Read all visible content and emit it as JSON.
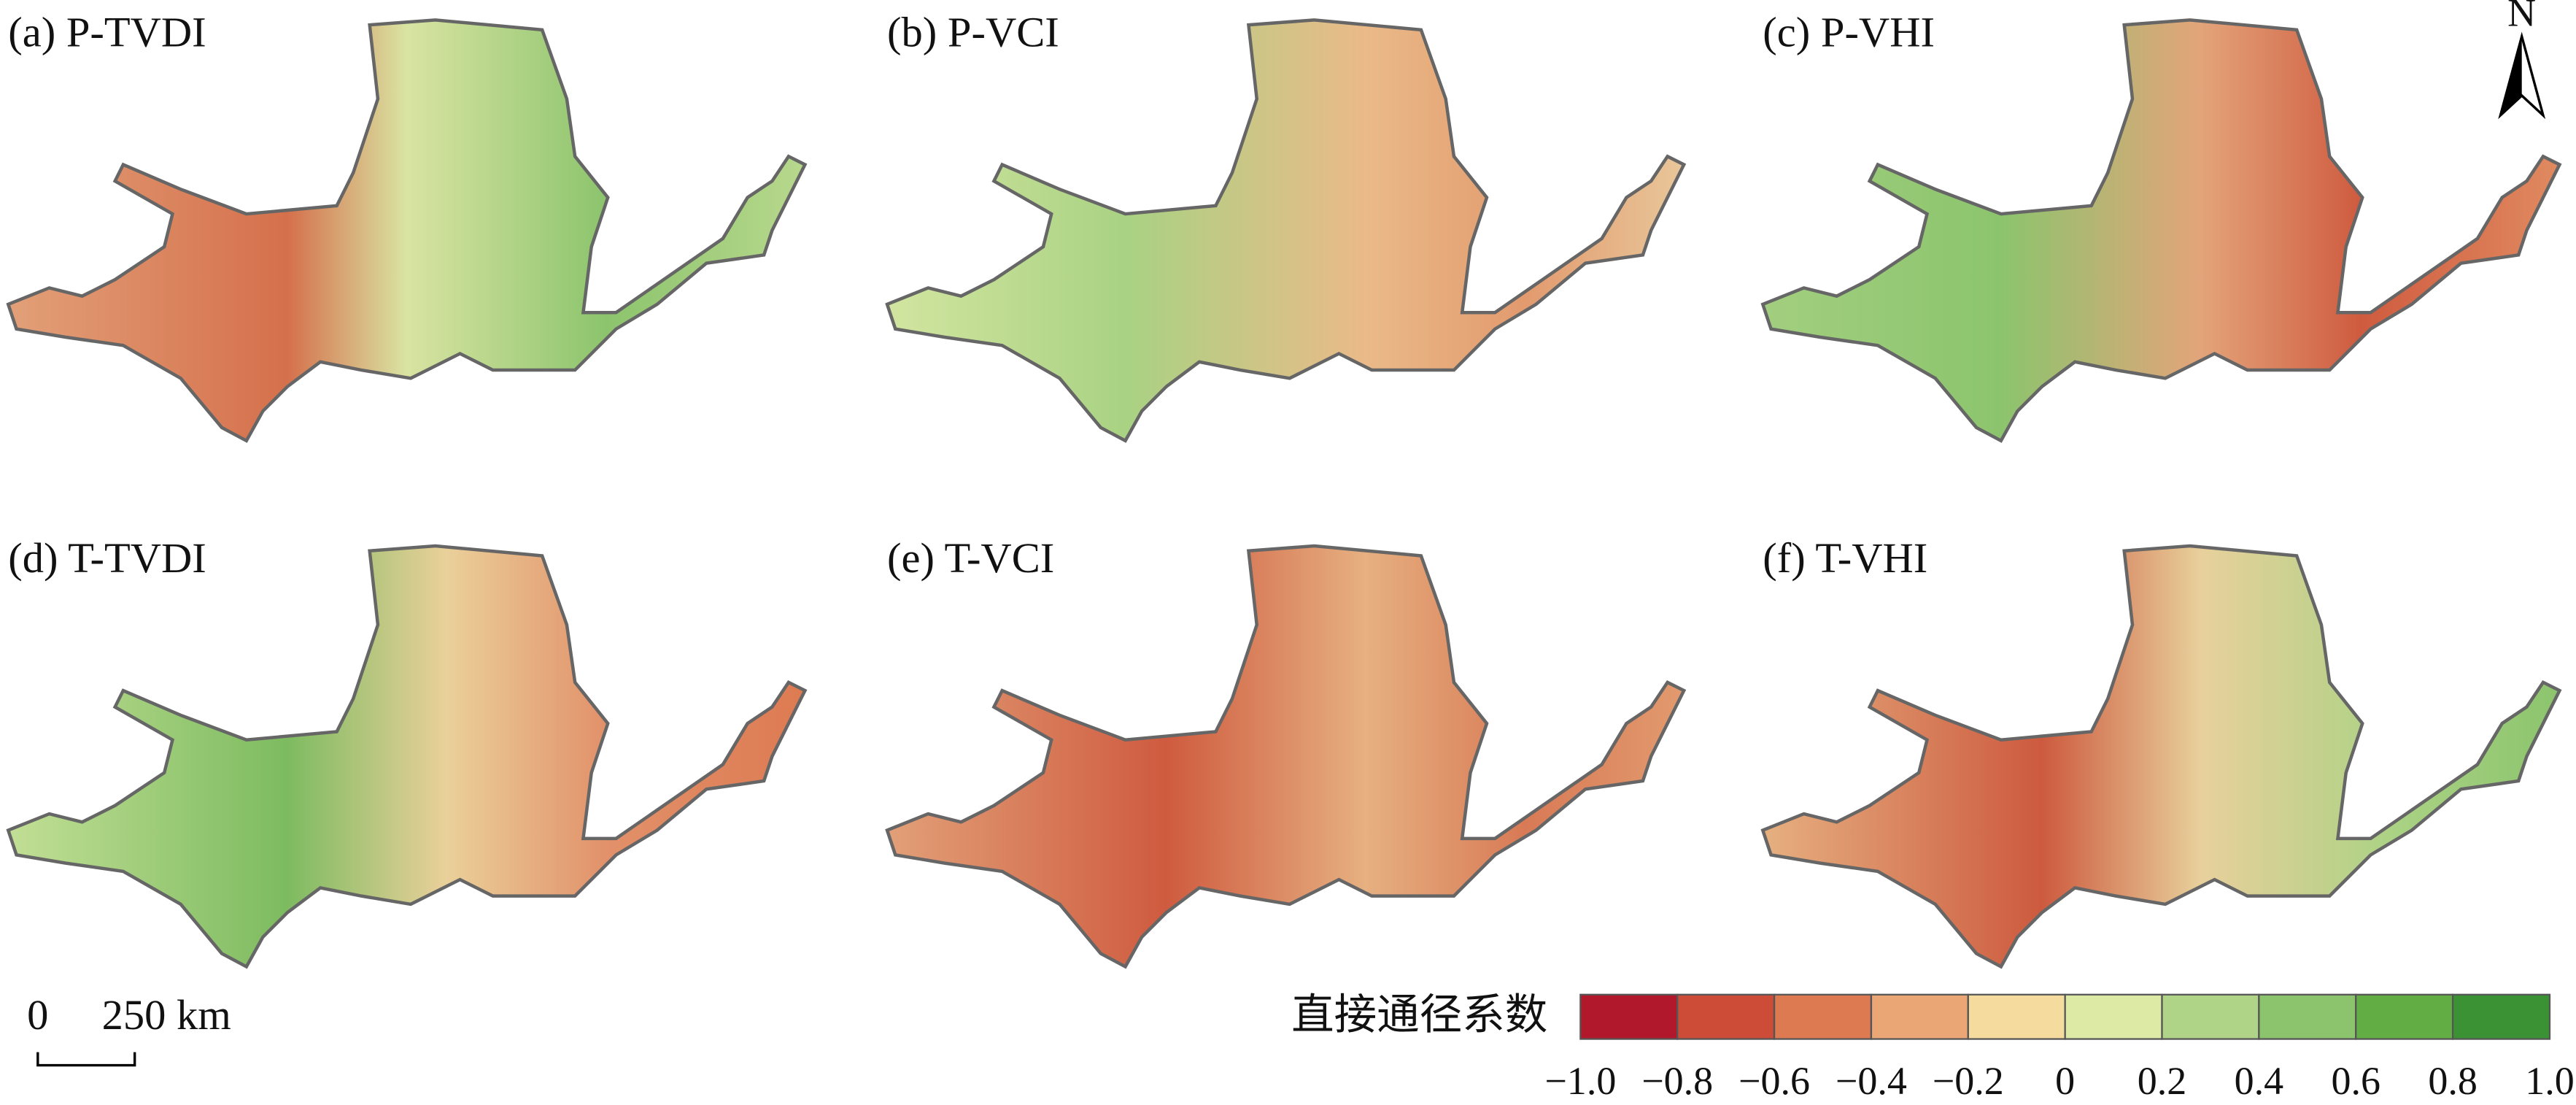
{
  "panels": [
    {
      "label": "(a) P-TVDI"
    },
    {
      "label": "(b) P-VCI"
    },
    {
      "label": "(c) P-VHI"
    },
    {
      "label": "(d) T-TVDI"
    },
    {
      "label": "(e) T-VCI"
    },
    {
      "label": "(f) T-VHI"
    }
  ],
  "north": "N",
  "scale_bar": {
    "labels": [
      "0",
      "250 km"
    ]
  },
  "legend": {
    "title": "直接通径系数",
    "colors": [
      "#b2182b",
      "#cc4c37",
      "#dd7a52",
      "#eba676",
      "#f5dc9e",
      "#ddeaa6",
      "#b0d487",
      "#8cc46d",
      "#63ad45",
      "#3a9235"
    ],
    "ticks": [
      {
        "value": -1,
        "label": "−1.0"
      },
      {
        "value": -0.8,
        "label": "−0.8"
      },
      {
        "value": -0.6,
        "label": "−0.6"
      },
      {
        "value": -0.4,
        "label": "−0.4"
      },
      {
        "value": -0.2,
        "label": "−0.2"
      },
      0,
      0.2,
      0.4,
      0.6,
      0.8,
      {
        "value": 1,
        "label": "1.0"
      }
    ]
  }
}
